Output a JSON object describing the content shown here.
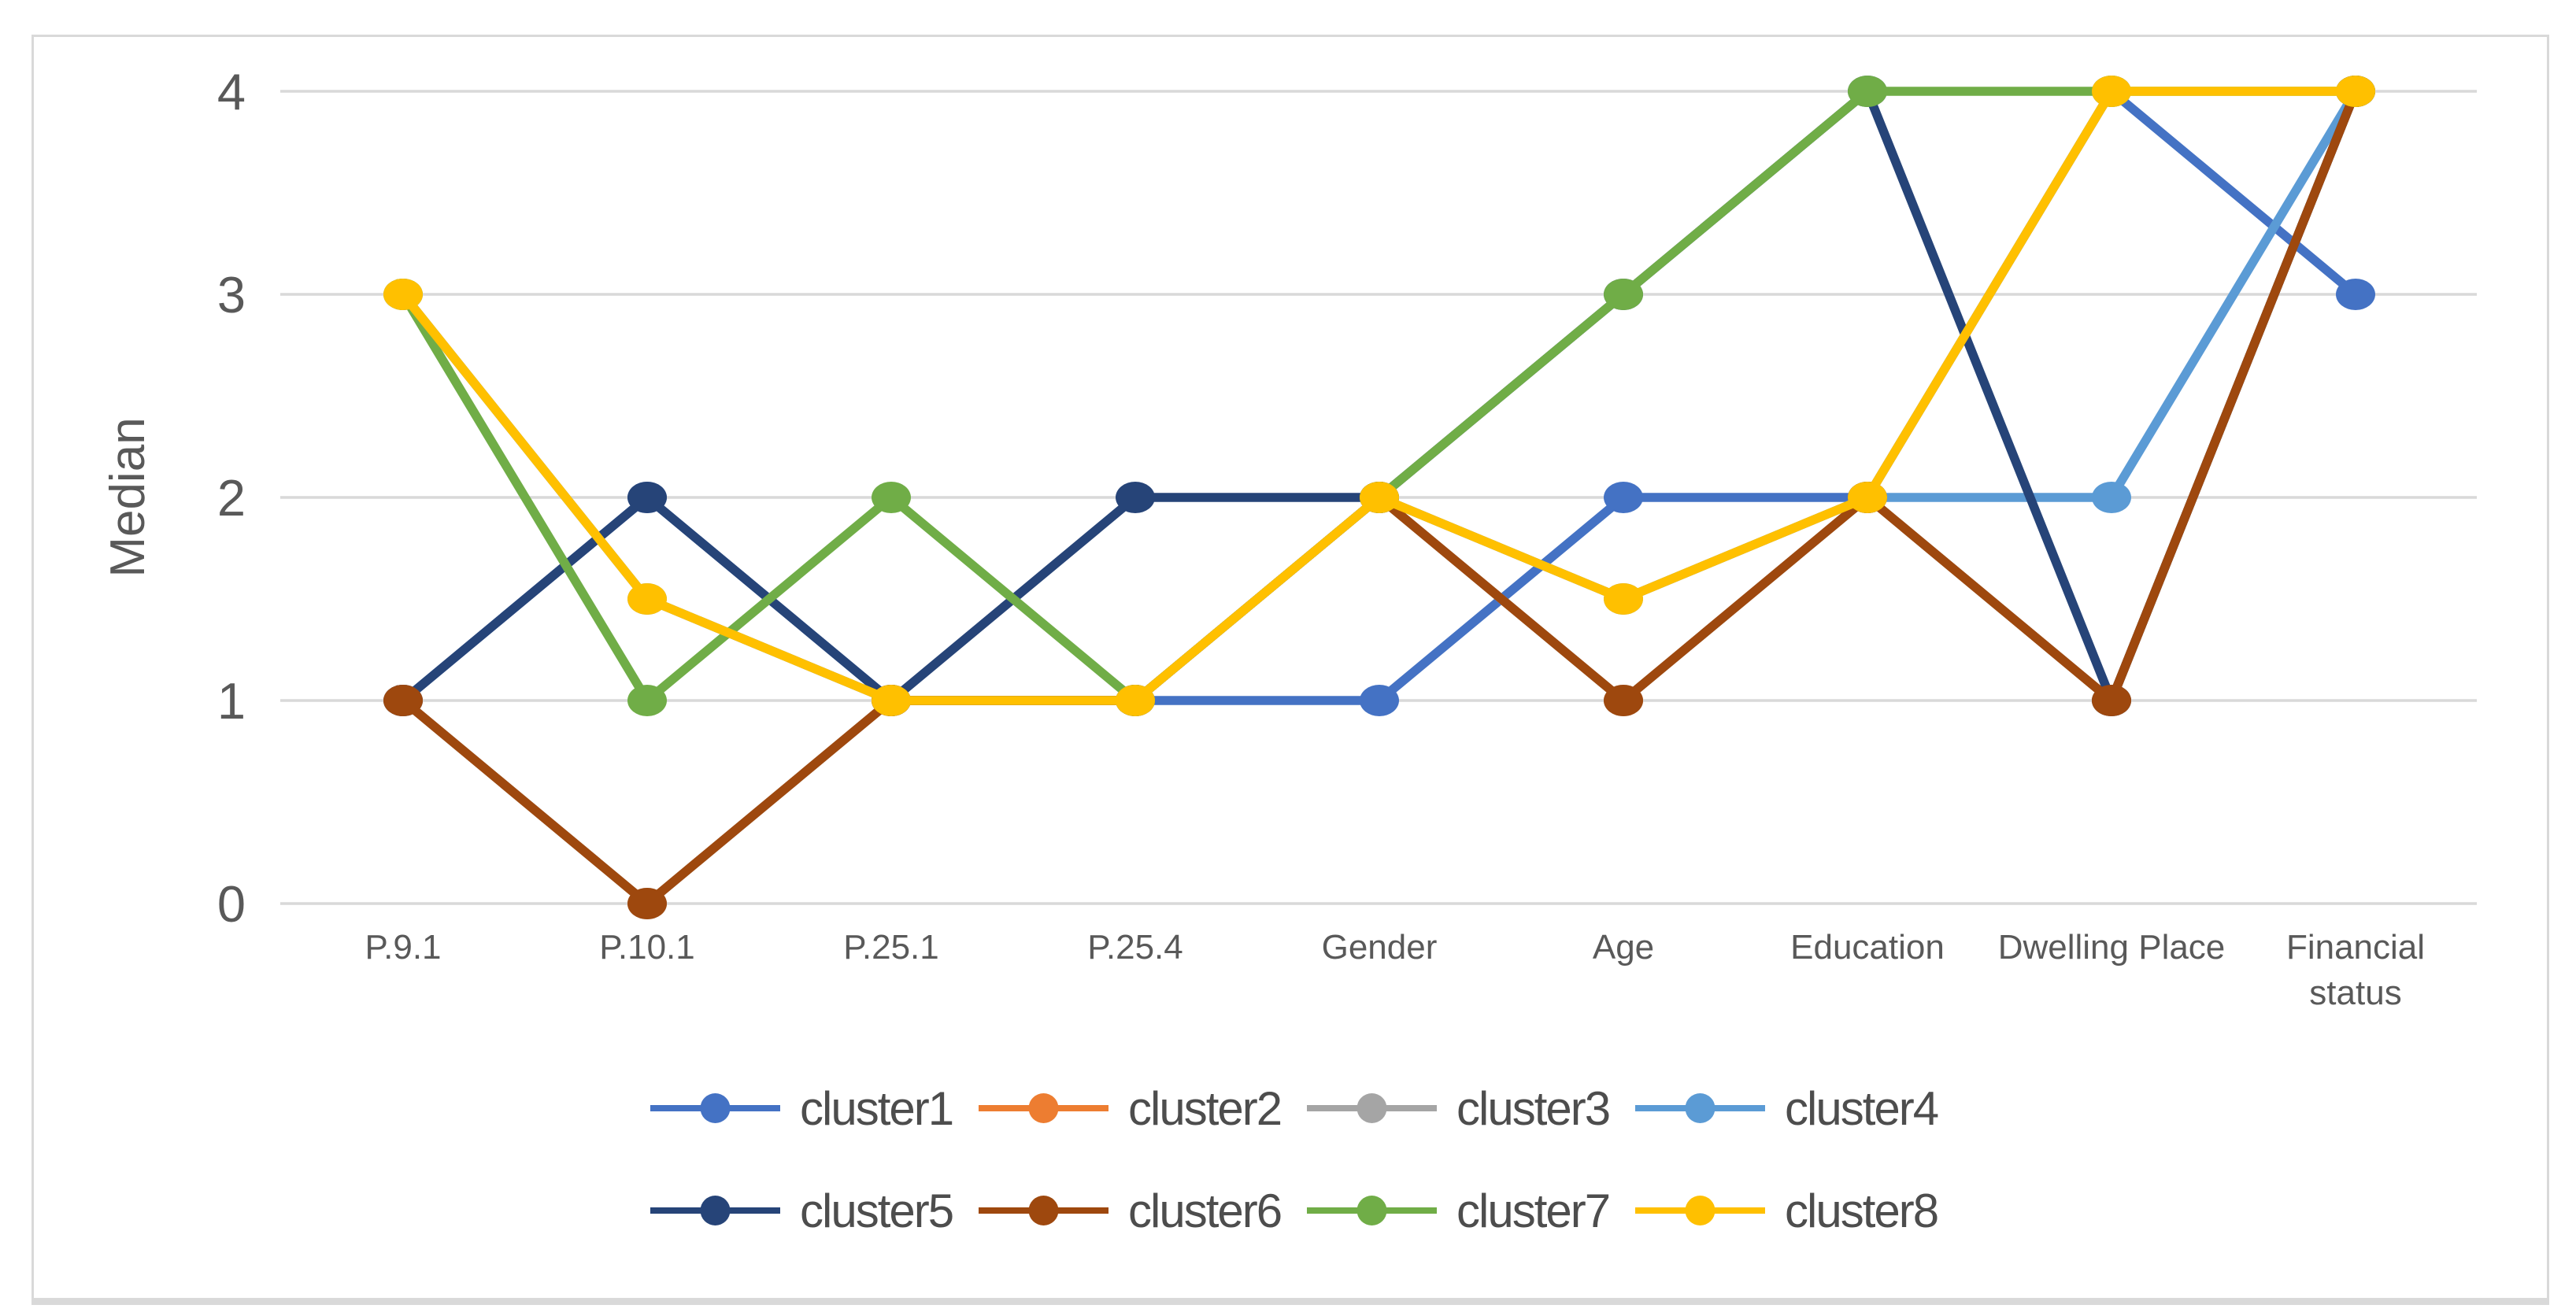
{
  "frame": {
    "background": "#FFFFFF",
    "border_color": "#D9D9D9"
  },
  "chart_data": {
    "type": "line",
    "title": "",
    "xlabel": "",
    "ylabel": "Median",
    "ylim": [
      0,
      4
    ],
    "yticks": [
      0,
      1,
      2,
      3,
      4
    ],
    "grid": "horizontal",
    "gridline_color": "#D9D9D9",
    "axis_text_color": "#595959",
    "legend_text_color": "#4D4D4D",
    "legend_position": "bottom",
    "legend_rows": 2,
    "marker": "circle",
    "categories": [
      "P.9.1",
      "P.10.1",
      "P.25.1",
      "P.25.4",
      "Gender",
      "Age",
      "Education",
      "Dwelling Place",
      "Financial status"
    ],
    "category_label_lines": [
      [
        "P.9.1"
      ],
      [
        "P.10.1"
      ],
      [
        "P.25.1"
      ],
      [
        "P.25.4"
      ],
      [
        "Gender"
      ],
      [
        "Age"
      ],
      [
        "Education"
      ],
      [
        "Dwelling Place"
      ],
      [
        "Financial",
        "status"
      ]
    ],
    "series": [
      {
        "name": "cluster1",
        "color": "#4472C4",
        "values": [
          1,
          2,
          1,
          1,
          1,
          2,
          2,
          4,
          3
        ]
      },
      {
        "name": "cluster2",
        "color": "#ED7D31",
        "values": [
          1,
          0,
          1,
          1,
          2,
          1,
          2,
          1,
          4
        ],
        "fully_hidden_behind_other_lines": true
      },
      {
        "name": "cluster3",
        "color": "#A5A5A5",
        "values": [
          1,
          0,
          1,
          1,
          2,
          1,
          2,
          1,
          4
        ],
        "fully_hidden_behind_other_lines": true
      },
      {
        "name": "cluster4",
        "color": "#5B9BD5",
        "values": [
          3,
          1.5,
          1,
          1,
          2,
          1.5,
          2,
          2,
          4
        ]
      },
      {
        "name": "cluster5",
        "color": "#264478",
        "values": [
          1,
          2,
          1,
          2,
          2,
          3,
          4,
          1,
          4
        ]
      },
      {
        "name": "cluster6",
        "color": "#9E480E",
        "values": [
          1,
          0,
          1,
          1,
          2,
          1,
          2,
          1,
          4
        ]
      },
      {
        "name": "cluster7",
        "color": "#70AD47",
        "values": [
          3,
          1,
          2,
          1,
          2,
          3,
          4,
          4,
          4
        ]
      },
      {
        "name": "cluster8",
        "color": "#FFC000",
        "values": [
          3,
          1.5,
          1,
          1,
          2,
          1.5,
          2,
          4,
          4
        ]
      }
    ]
  }
}
